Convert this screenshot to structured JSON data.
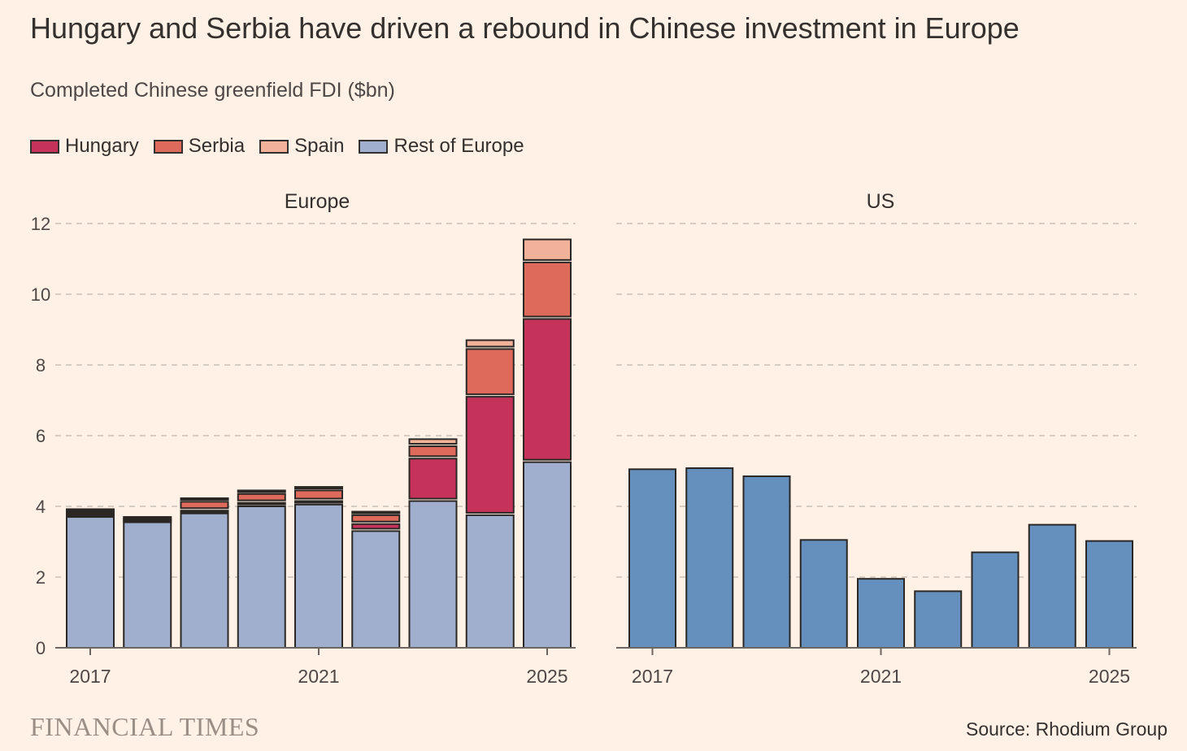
{
  "header": {
    "title": "Hungary and Serbia have driven a rebound in Chinese investment in Europe",
    "subtitle": "Completed Chinese greenfield FDI ($bn)"
  },
  "legend": [
    {
      "label": "Hungary",
      "color": "#c5335a"
    },
    {
      "label": "Serbia",
      "color": "#dd6a5b"
    },
    {
      "label": "Spain",
      "color": "#f2b29a"
    },
    {
      "label": "Rest of Europe",
      "color": "#a0afcd"
    }
  ],
  "footer": {
    "brand": "FINANCIAL TIMES",
    "source": "Source: Rhodium Group"
  },
  "chart_data": [
    {
      "type": "bar",
      "stacked": true,
      "panel_title": "Europe",
      "x": [
        2017,
        2018,
        2019,
        2020,
        2021,
        2022,
        2023,
        2024,
        2025
      ],
      "x_tick_labels": [
        "2017",
        "2021",
        "2025"
      ],
      "y_tick_labels": [
        "0",
        "2",
        "4",
        "6",
        "8",
        "10",
        "12"
      ],
      "ylim": [
        0,
        12
      ],
      "grid": true,
      "series": [
        {
          "name": "Rest of Europe",
          "color": "#a0afcd",
          "values": [
            3.7,
            3.55,
            3.8,
            4.0,
            4.05,
            3.3,
            4.15,
            3.75,
            5.25
          ]
        },
        {
          "name": "Hungary",
          "color": "#c5335a",
          "values": [
            0.08,
            0.05,
            0.08,
            0.1,
            0.1,
            0.2,
            1.2,
            3.35,
            4.05
          ]
        },
        {
          "name": "Serbia",
          "color": "#dd6a5b",
          "values": [
            0.07,
            0.05,
            0.25,
            0.25,
            0.3,
            0.25,
            0.35,
            1.35,
            1.6
          ]
        },
        {
          "name": "Spain",
          "color": "#f2b29a",
          "values": [
            0.07,
            0.05,
            0.1,
            0.1,
            0.1,
            0.1,
            0.2,
            0.25,
            0.65
          ]
        }
      ]
    },
    {
      "type": "bar",
      "panel_title": "US",
      "x": [
        2017,
        2018,
        2019,
        2020,
        2021,
        2022,
        2023,
        2024,
        2025
      ],
      "x_tick_labels": [
        "2017",
        "2021",
        "2025"
      ],
      "ylim": [
        0,
        12
      ],
      "grid": true,
      "series": [
        {
          "color": "#6590bd",
          "values": [
            5.05,
            5.08,
            4.85,
            3.05,
            1.95,
            1.6,
            2.7,
            3.48,
            3.02
          ]
        }
      ]
    }
  ]
}
